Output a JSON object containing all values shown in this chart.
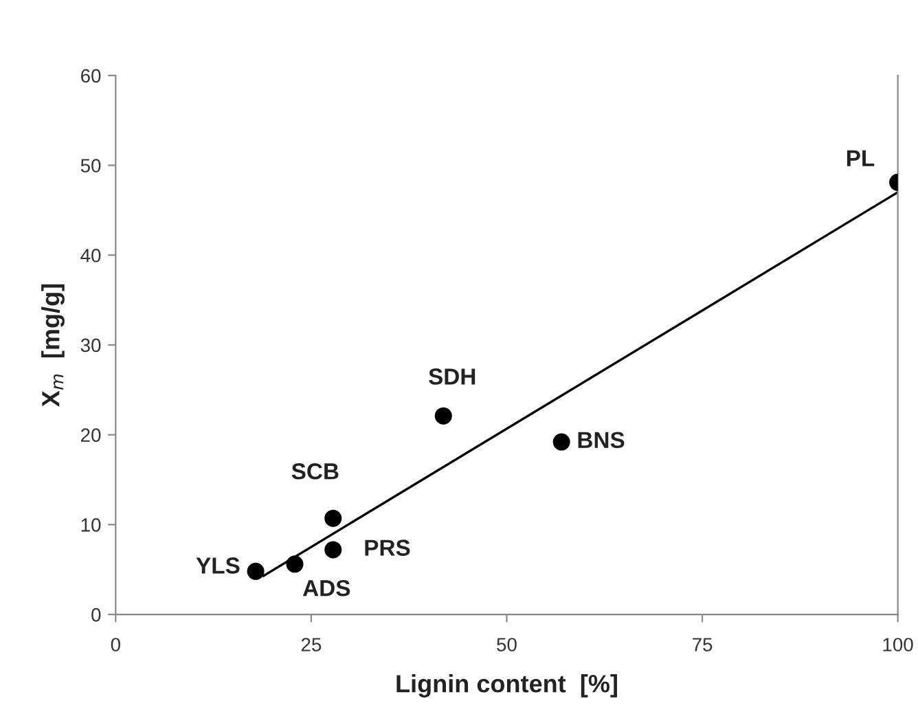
{
  "chart_data": {
    "type": "scatter",
    "xlabel": "Lignin content  [%]",
    "ylabel": "X$_{m}$  [mg/g]",
    "xlim": [
      0,
      100
    ],
    "xticks": [
      0,
      25,
      50,
      75,
      100
    ],
    "ylim": [
      0,
      60
    ],
    "yticks": [
      0,
      10,
      20,
      30,
      40,
      50,
      60
    ],
    "grid": false,
    "legend": false,
    "marker": "circle",
    "series": [
      {
        "color": "#000000",
        "x": [
          100,
          41.9,
          57.0,
          27.8,
          27.8,
          22.9,
          17.9
        ],
        "values": [
          48.1,
          22.1,
          19.2,
          10.7,
          7.2,
          5.6,
          4.8
        ]
      },
      {
        "type": "line",
        "color": "#000000",
        "x": [
          18.9,
          100
        ],
        "values": [
          4.3,
          47.0
        ],
        "marker": "none",
        "line_style": "solid"
      }
    ],
    "annotations": [
      {
        "text": "PL",
        "x": 100,
        "y": 48.1
      },
      {
        "text": "SDH",
        "x": 41.9,
        "y": 22.1
      },
      {
        "text": "BNS",
        "x": 57.0,
        "y": 19.2
      },
      {
        "text": "SCB",
        "x": 27.8,
        "y": 10.7
      },
      {
        "text": "PRS",
        "x": 27.8,
        "y": 7.2
      },
      {
        "text": "ADS",
        "x": 22.9,
        "y": 5.6
      },
      {
        "text": "YLS",
        "x": 17.9,
        "y": 4.8
      }
    ]
  }
}
